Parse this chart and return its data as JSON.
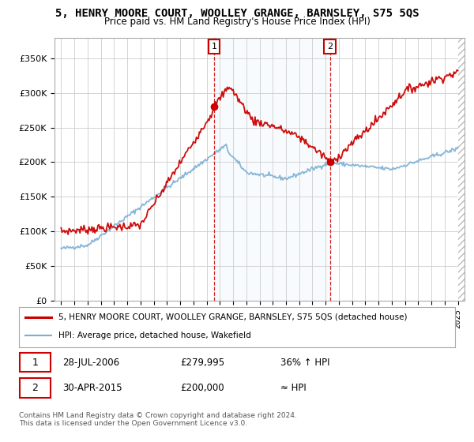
{
  "title": "5, HENRY MOORE COURT, WOOLLEY GRANGE, BARNSLEY, S75 5QS",
  "subtitle": "Price paid vs. HM Land Registry's House Price Index (HPI)",
  "legend_line1": "5, HENRY MOORE COURT, WOOLLEY GRANGE, BARNSLEY, S75 5QS (detached house)",
  "legend_line2": "HPI: Average price, detached house, Wakefield",
  "annotation1_label": "1",
  "annotation1_date": "28-JUL-2006",
  "annotation1_price": "£279,995",
  "annotation1_hpi": "36% ↑ HPI",
  "annotation2_label": "2",
  "annotation2_date": "30-APR-2015",
  "annotation2_price": "£200,000",
  "annotation2_hpi": "≈ HPI",
  "footer": "Contains HM Land Registry data © Crown copyright and database right 2024.\nThis data is licensed under the Open Government Licence v3.0.",
  "sale1_x": 2006.57,
  "sale1_y": 279995,
  "sale2_x": 2015.33,
  "sale2_y": 200000,
  "ylim": [
    0,
    380000
  ],
  "xlim": [
    1994.5,
    2025.5
  ],
  "red_color": "#cc0000",
  "blue_color": "#7aafd4",
  "blue_fill": "#daeaf5",
  "vline_color": "#cc0000",
  "grid_color": "#cccccc",
  "background_color": "#ffffff",
  "plot_bg_color": "#ffffff"
}
